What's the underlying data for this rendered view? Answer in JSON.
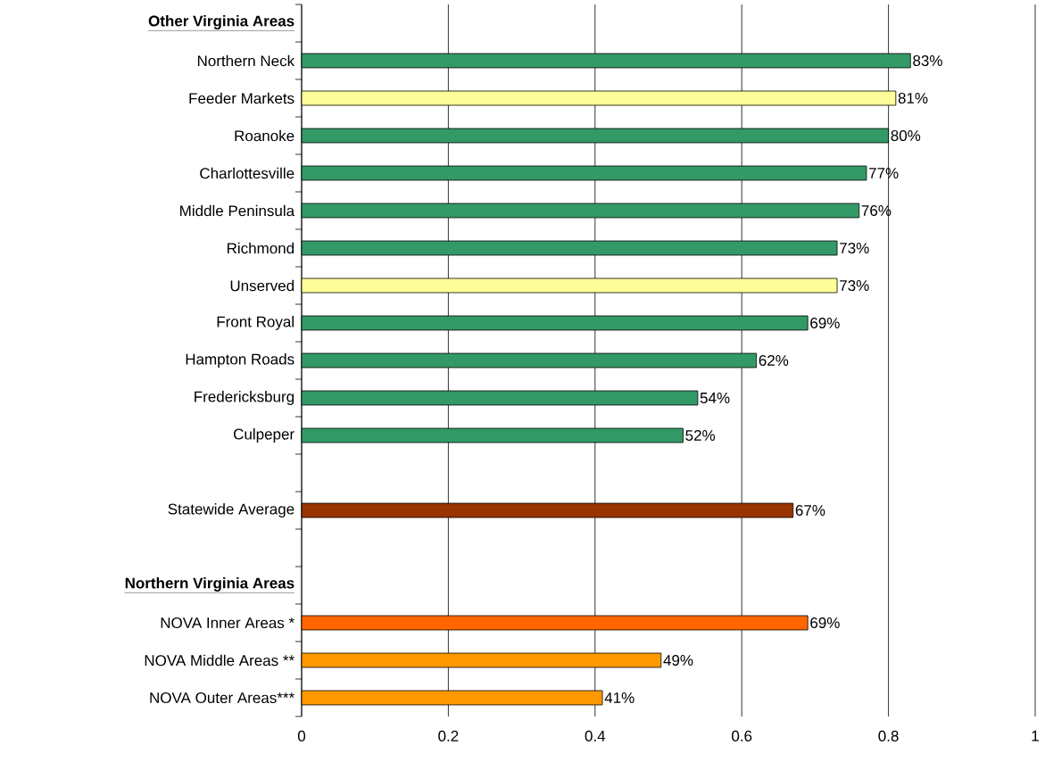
{
  "chart_data": {
    "type": "bar",
    "orientation": "horizontal",
    "categories": [
      "Other Virginia Areas",
      "Northern Neck",
      "Feeder Markets",
      "Roanoke",
      "Charlottesville",
      "Middle Peninsula",
      "Richmond",
      "Unserved",
      "Front Royal",
      "Hampton Roads",
      "Fredericksburg",
      "Culpeper",
      null,
      "Statewide Average",
      null,
      "Northern Virginia Areas",
      "NOVA Inner Areas *",
      "NOVA Middle Areas **",
      "NOVA Outer Areas***"
    ],
    "values": [
      null,
      0.83,
      0.81,
      0.8,
      0.77,
      0.76,
      0.73,
      0.73,
      0.69,
      0.62,
      0.54,
      0.52,
      null,
      0.67,
      null,
      null,
      0.69,
      0.49,
      0.41
    ],
    "value_labels": [
      null,
      "83%",
      "81%",
      "80%",
      "77%",
      "76%",
      "73%",
      "73%",
      "69%",
      "62%",
      "54%",
      "52%",
      null,
      "67%",
      null,
      null,
      "69%",
      "49%",
      "41%"
    ],
    "colors": [
      "#339966",
      "#339966",
      "#ffff99",
      "#339966",
      "#339966",
      "#339966",
      "#339966",
      "#ffff99",
      "#339966",
      "#339966",
      "#339966",
      "#339966",
      "#339966",
      "#993300",
      "#339966",
      "#339966",
      "#ff6600",
      "#ff9900",
      "#ff9900"
    ],
    "xlim": [
      0,
      1
    ],
    "xticks": [
      0,
      0.2,
      0.4,
      0.6,
      0.8,
      1
    ],
    "grid": "x"
  }
}
